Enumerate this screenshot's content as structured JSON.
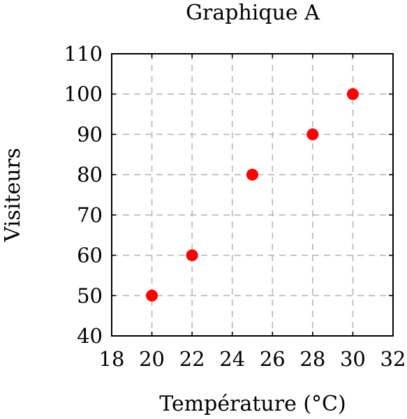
{
  "chart_data": {
    "type": "scatter",
    "title": "Graphique A",
    "xlabel": "Température (°C)",
    "ylabel": "Visiteurs",
    "xlim": [
      18,
      32
    ],
    "ylim": [
      40,
      110
    ],
    "xticks": [
      18,
      20,
      22,
      24,
      26,
      28,
      30,
      32
    ],
    "yticks": [
      40,
      50,
      60,
      70,
      80,
      90,
      100,
      110
    ],
    "grid": true,
    "series": [
      {
        "color": "#ff0000",
        "points": [
          {
            "x": 20,
            "y": 50
          },
          {
            "x": 22,
            "y": 60
          },
          {
            "x": 25,
            "y": 80
          },
          {
            "x": 28,
            "y": 90
          },
          {
            "x": 30,
            "y": 100
          }
        ]
      }
    ]
  }
}
